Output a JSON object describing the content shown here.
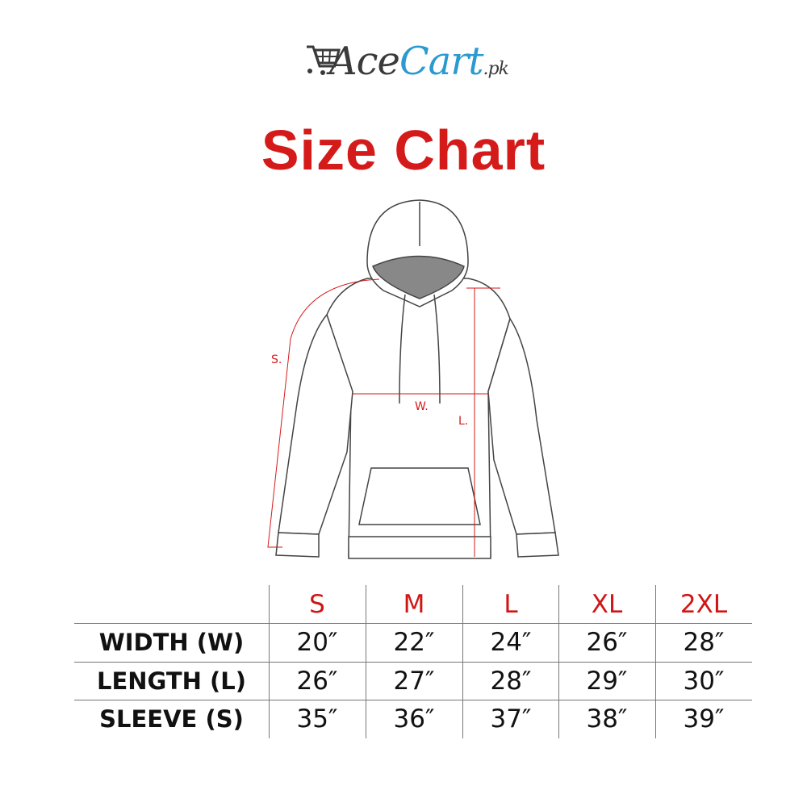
{
  "logo": {
    "part1": "Ace",
    "part2": "Cart",
    "suffix": ".pk",
    "icon": "shopping-cart-icon",
    "colors": {
      "dark": "#3a3a3a",
      "blue": "#2a9ad0"
    }
  },
  "title": "Size Chart",
  "diagram": {
    "labels": {
      "sleeve": "S.",
      "width": "W.",
      "length": "L."
    },
    "measure_color": "#d51a1a"
  },
  "table": {
    "sizes": [
      "S",
      "M",
      "L",
      "XL",
      "2XL"
    ],
    "rows": [
      {
        "label": "WIDTH (W)",
        "values": [
          "20″",
          "22″",
          "24″",
          "26″",
          "28″"
        ]
      },
      {
        "label": "LENGTH (L)",
        "values": [
          "26″",
          "27″",
          "28″",
          "29″",
          "30″"
        ]
      },
      {
        "label": "SLEEVE (S)",
        "values": [
          "35″",
          "36″",
          "37″",
          "38″",
          "39″"
        ]
      }
    ],
    "header_color": "#d01515"
  }
}
